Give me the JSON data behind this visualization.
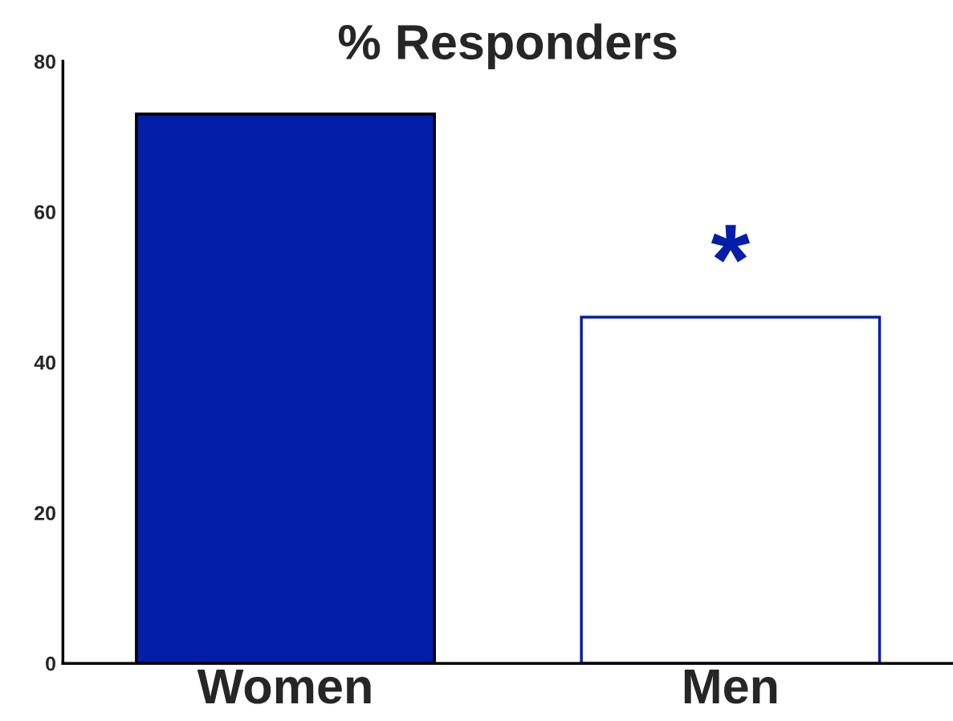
{
  "chart_data": {
    "type": "bar",
    "title": "% Responders",
    "categories": [
      "Women",
      "Men"
    ],
    "values": [
      73,
      46
    ],
    "colors": [
      "#031ea8",
      "#ffffff"
    ],
    "ylim": [
      0,
      80
    ],
    "yticks": [
      0,
      20,
      40,
      60,
      80
    ],
    "grid": false,
    "legend": false,
    "annotations": [
      {
        "text": "*",
        "x": "Men",
        "y": 46
      }
    ]
  }
}
